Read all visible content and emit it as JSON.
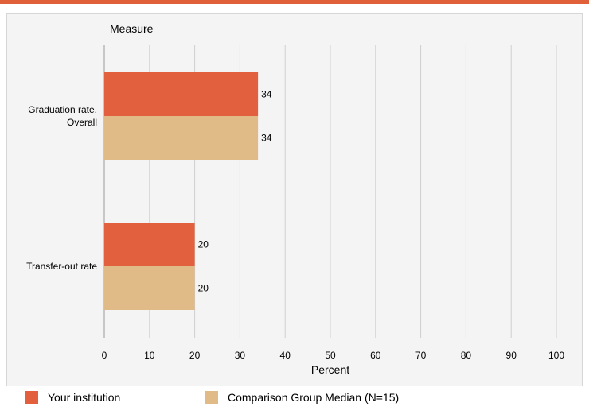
{
  "chart_data": {
    "type": "bar",
    "orientation": "horizontal",
    "categories": [
      "Graduation rate, Overall",
      "Transfer-out rate"
    ],
    "series": [
      {
        "name": "Your institution",
        "values": [
          34,
          20
        ],
        "color": "#e2603d"
      },
      {
        "name": "Comparison Group Median (N=15)",
        "values": [
          34,
          20
        ],
        "color": "#e0bb88"
      }
    ],
    "ylabel": "Measure",
    "xlabel": "Percent",
    "xlim": [
      0,
      100
    ],
    "xticks": [
      "0",
      "10",
      "20",
      "30",
      "40",
      "50",
      "60",
      "70",
      "80",
      "90",
      "100"
    ],
    "grid": true,
    "legend_position": "bottom"
  }
}
